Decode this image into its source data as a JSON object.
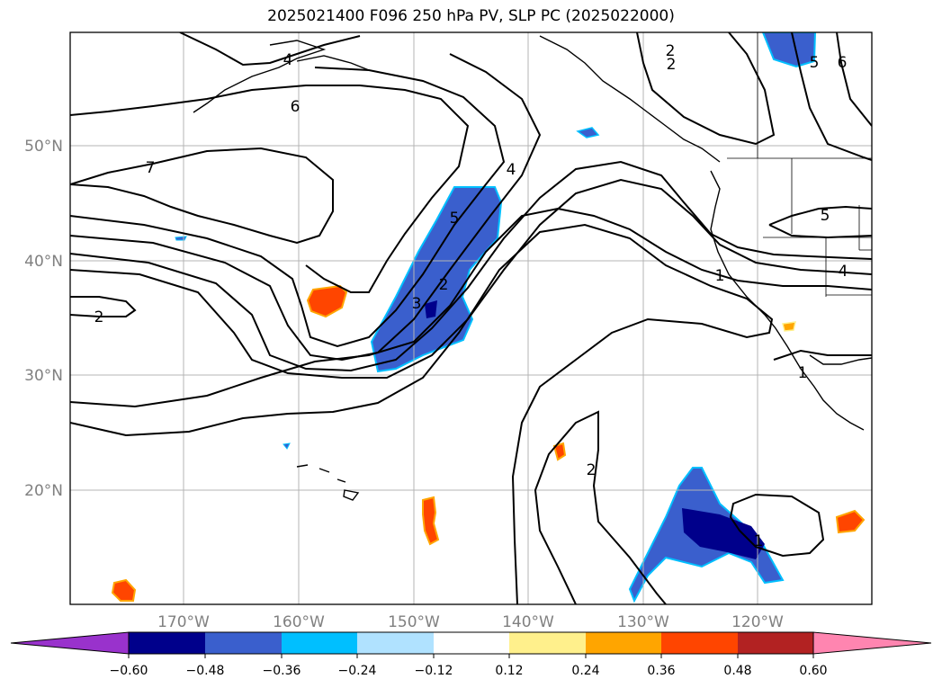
{
  "title": "2025021400 F096 250 hPa PV, SLP PC (2025022000)",
  "map": {
    "lat_labels": [
      "50°N",
      "40°N",
      "30°N",
      "20°N"
    ],
    "lon_labels": [
      "170°W",
      "160°W",
      "150°W",
      "140°W",
      "130°W",
      "120°W"
    ],
    "grid": true,
    "contour_labels": [
      "4",
      "6",
      "7",
      "2",
      "4",
      "5",
      "3",
      "2",
      "2",
      "5",
      "4",
      "1",
      "1",
      "2",
      "1",
      "2",
      "6",
      "5"
    ]
  },
  "colorbar": {
    "ticks": [
      "−0.60",
      "−0.48",
      "−0.36",
      "−0.24",
      "−0.12",
      "0.12",
      "0.24",
      "0.36",
      "0.48",
      "0.60"
    ],
    "colors": [
      "#9932cc",
      "#00008b",
      "#3a5fcd",
      "#00bfff",
      "#b0e2ff",
      "#ffffff",
      "#fff08c",
      "#ffa500",
      "#ff4500",
      "#b22222",
      "#ff85b0"
    ],
    "extend": "both"
  },
  "colors": {
    "negative_strong": "#00008b",
    "negative_mid": "#3a5fcd",
    "negative_weak": "#00bfff",
    "positive_weak": "#fff08c",
    "positive_mid": "#ffa500",
    "positive_strong": "#ff4500"
  }
}
